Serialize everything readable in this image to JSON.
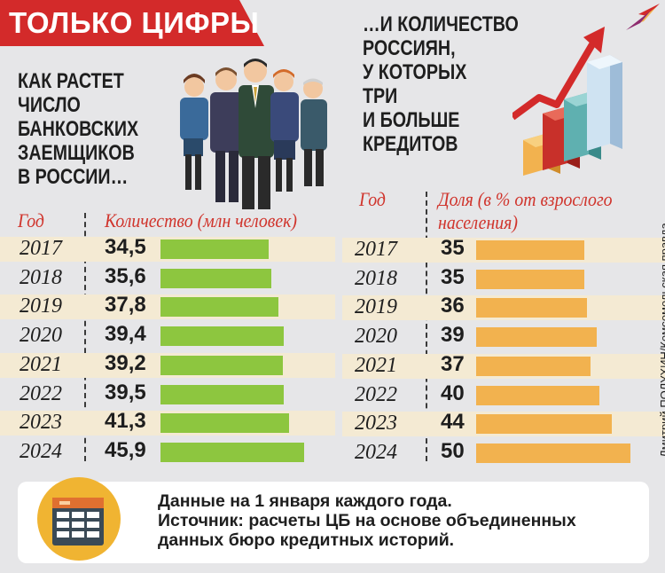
{
  "banner": {
    "title": "ТОЛЬКО ЦИФРЫ"
  },
  "headings": {
    "left_lines": [
      "КАК РАСТЕТ",
      "ЧИСЛО",
      "БАНКОВСКИХ",
      "ЗАЕМЩИКОВ",
      "В РОССИИ…"
    ],
    "right_lines": [
      "…И КОЛИЧЕСТВО",
      "РОССИЯН,",
      "У КОТОРЫХ",
      "ТРИ",
      "И БОЛЬШЕ",
      "КРЕДИТОВ"
    ]
  },
  "colors": {
    "banner_red": "#d32a2a",
    "header_red": "#d0342c",
    "left_bar": "#8dc63f",
    "right_bar": "#f2b24f",
    "row_band": "#f4ead3",
    "background": "#e6e6e8"
  },
  "credit": "Дмитрий ПОЛУХИН/Комсомольская правда",
  "note": {
    "lines": [
      "Данные на 1 января каждого года.",
      "Источник: расчеты ЦБ на основе объединенных",
      "данных бюро кредитных историй."
    ],
    "icon": "table-icon"
  },
  "chart_data": [
    {
      "type": "bar",
      "orientation": "horizontal",
      "title": "КАК РАСТЕТ ЧИСЛО БАНКОВСКИХ ЗАЕМЩИКОВ В РОССИИ…",
      "category_header": "Год",
      "value_header": "Количество (млн человек)",
      "categories": [
        "2017",
        "2018",
        "2019",
        "2020",
        "2021",
        "2022",
        "2023",
        "2024"
      ],
      "values": [
        34.5,
        35.6,
        37.8,
        39.4,
        39.2,
        39.5,
        41.3,
        45.9
      ],
      "labels": [
        "34,5",
        "35,6",
        "37,8",
        "39,4",
        "39,2",
        "39,5",
        "41,3",
        "45,9"
      ],
      "xlim": [
        0,
        46
      ],
      "color": "#8dc63f"
    },
    {
      "type": "bar",
      "orientation": "horizontal",
      "title": "…И КОЛИЧЕСТВО РОССИЯН, У КОТОРЫХ ТРИ И БОЛЬШЕ КРЕДИТОВ",
      "category_header": "Год",
      "value_header": "Доля (в % от взрослого населения)",
      "categories": [
        "2017",
        "2018",
        "2019",
        "2020",
        "2021",
        "2022",
        "2023",
        "2024"
      ],
      "values": [
        35,
        35,
        36,
        39,
        37,
        40,
        44,
        50
      ],
      "labels": [
        "35",
        "35",
        "36",
        "39",
        "37",
        "40",
        "44",
        "50"
      ],
      "xlim": [
        0,
        50
      ],
      "color": "#f2b24f"
    }
  ]
}
